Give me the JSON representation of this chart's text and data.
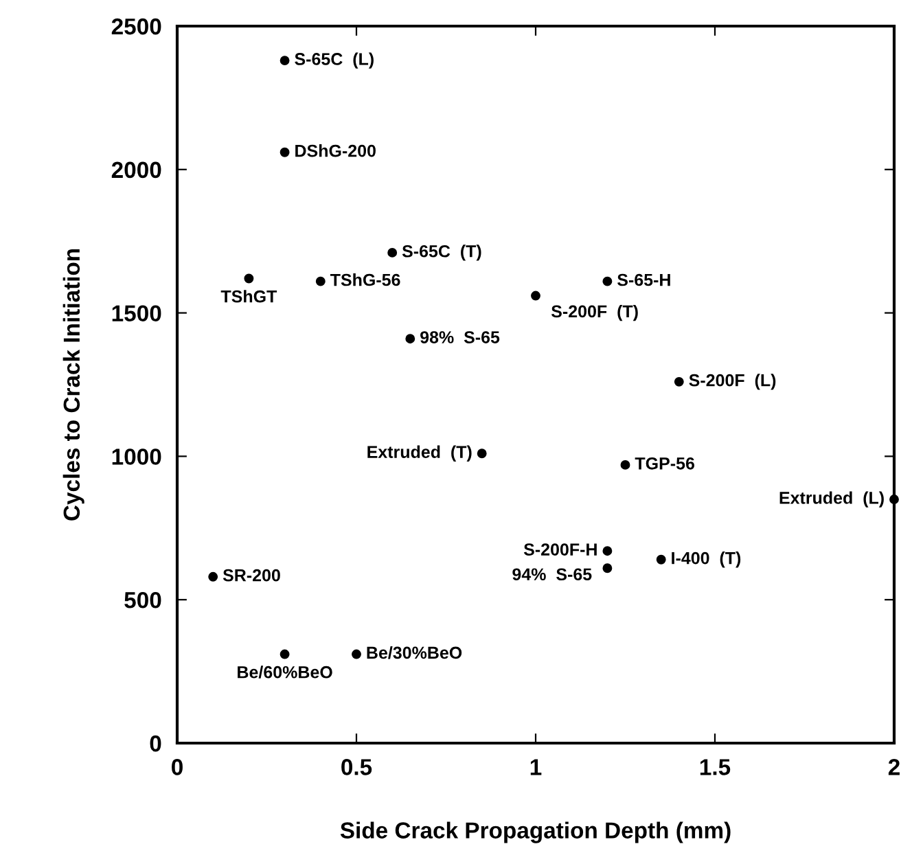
{
  "chart_data": {
    "type": "scatter",
    "xlabel": "Side Crack Propagation Depth (mm)",
    "ylabel": "Cycles to Crack Initiation",
    "x": [
      0.3,
      0.3,
      0.6,
      0.2,
      0.4,
      0.65,
      1.0,
      1.2,
      1.4,
      1.25,
      2.0,
      1.2,
      1.2,
      1.35,
      0.85,
      0.1,
      0.3,
      0.5
    ],
    "values": [
      2380,
      2060,
      1710,
      1620,
      1610,
      1410,
      1560,
      1610,
      1260,
      970,
      850,
      670,
      610,
      640,
      1010,
      580,
      310,
      310
    ],
    "color": "#000000",
    "marker": "circle",
    "xlim": [
      0,
      2
    ],
    "ylim": [
      0,
      2500
    ],
    "xticks": [
      0,
      0.5,
      1,
      1.5,
      2
    ],
    "yticks": [
      0,
      500,
      1000,
      1500,
      2000,
      2500
    ],
    "grid": false,
    "annotations": [
      {
        "text": "S-65C  (L)",
        "x": 0.3,
        "y": 2380
      },
      {
        "text": "DShG-200",
        "x": 0.3,
        "y": 2060
      },
      {
        "text": "S-65C  (T)",
        "x": 0.6,
        "y": 1710
      },
      {
        "text": "TShGT",
        "x": 0.2,
        "y": 1620
      },
      {
        "text": "TShG-56",
        "x": 0.4,
        "y": 1610
      },
      {
        "text": "98%  S-65",
        "x": 0.65,
        "y": 1410
      },
      {
        "text": "S-200F  (T)",
        "x": 1.0,
        "y": 1560
      },
      {
        "text": "S-65-H",
        "x": 1.2,
        "y": 1610
      },
      {
        "text": "S-200F  (L)",
        "x": 1.4,
        "y": 1260
      },
      {
        "text": "TGP-56",
        "x": 1.25,
        "y": 970
      },
      {
        "text": "Extruded  (L)",
        "x": 2.0,
        "y": 850
      },
      {
        "text": "S-200F-H",
        "x": 1.2,
        "y": 670
      },
      {
        "text": "94%  S-65",
        "x": 1.2,
        "y": 610
      },
      {
        "text": "I-400  (T)",
        "x": 1.35,
        "y": 640
      },
      {
        "text": "Extruded  (T)",
        "x": 0.85,
        "y": 1010
      },
      {
        "text": "SR-200",
        "x": 0.1,
        "y": 580
      },
      {
        "text": "Be/60%BeO",
        "x": 0.3,
        "y": 310
      },
      {
        "text": "Be/30%BeO",
        "x": 0.5,
        "y": 310
      }
    ]
  }
}
